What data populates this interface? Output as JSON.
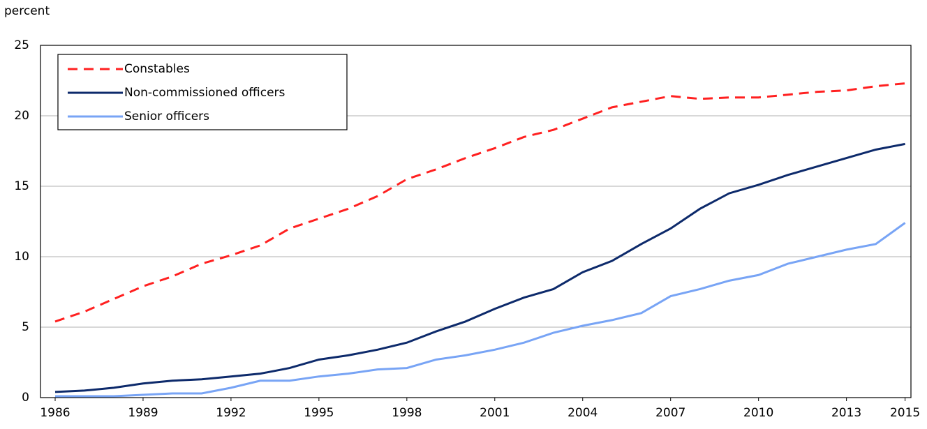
{
  "chart_data": {
    "type": "line",
    "y_label": "percent",
    "x": [
      1986,
      1987,
      1988,
      1989,
      1990,
      1991,
      1992,
      1993,
      1994,
      1995,
      1996,
      1997,
      1998,
      1999,
      2000,
      2001,
      2002,
      2003,
      2004,
      2005,
      2006,
      2007,
      2008,
      2009,
      2010,
      2011,
      2012,
      2013,
      2014,
      2015
    ],
    "series": [
      {
        "name": "Constables",
        "color": "#ff2020",
        "dashed": true,
        "values": [
          5.4,
          6.1,
          7.0,
          7.9,
          8.6,
          9.5,
          10.1,
          10.8,
          12.0,
          12.7,
          13.4,
          14.3,
          15.5,
          16.2,
          17.0,
          17.7,
          18.5,
          19.0,
          19.8,
          20.6,
          21.0,
          21.4,
          21.2,
          21.3,
          21.3,
          21.5,
          21.7,
          21.8,
          22.1,
          22.3
        ]
      },
      {
        "name": "Non-commissioned officers",
        "color": "#0d2a6b",
        "values": [
          0.4,
          0.5,
          0.7,
          1.0,
          1.2,
          1.3,
          1.5,
          1.7,
          2.1,
          2.7,
          3.0,
          3.4,
          3.9,
          4.7,
          5.4,
          6.3,
          7.1,
          7.7,
          8.9,
          9.7,
          10.9,
          12.0,
          13.4,
          14.5,
          15.1,
          15.8,
          16.4,
          17.0,
          17.6,
          18.0
        ]
      },
      {
        "name": "Senior officers",
        "color": "#78a4f5",
        "values": [
          0.1,
          0.1,
          0.1,
          0.2,
          0.3,
          0.3,
          0.7,
          1.2,
          1.2,
          1.5,
          1.7,
          2.0,
          2.1,
          2.7,
          3.0,
          3.4,
          3.9,
          4.6,
          5.1,
          5.5,
          6.0,
          7.2,
          7.7,
          8.3,
          8.7,
          9.5,
          10.0,
          10.5,
          10.9,
          12.4
        ]
      }
    ],
    "xlim": [
      1985.5,
      2015.2
    ],
    "xticks": [
      1986,
      1989,
      1992,
      1995,
      1998,
      2001,
      2004,
      2007,
      2010,
      2013,
      2015
    ],
    "ylim": [
      0,
      25
    ],
    "yticks": [
      0,
      5,
      10,
      15,
      20,
      25
    ],
    "grid": true,
    "legend": "upper left"
  }
}
